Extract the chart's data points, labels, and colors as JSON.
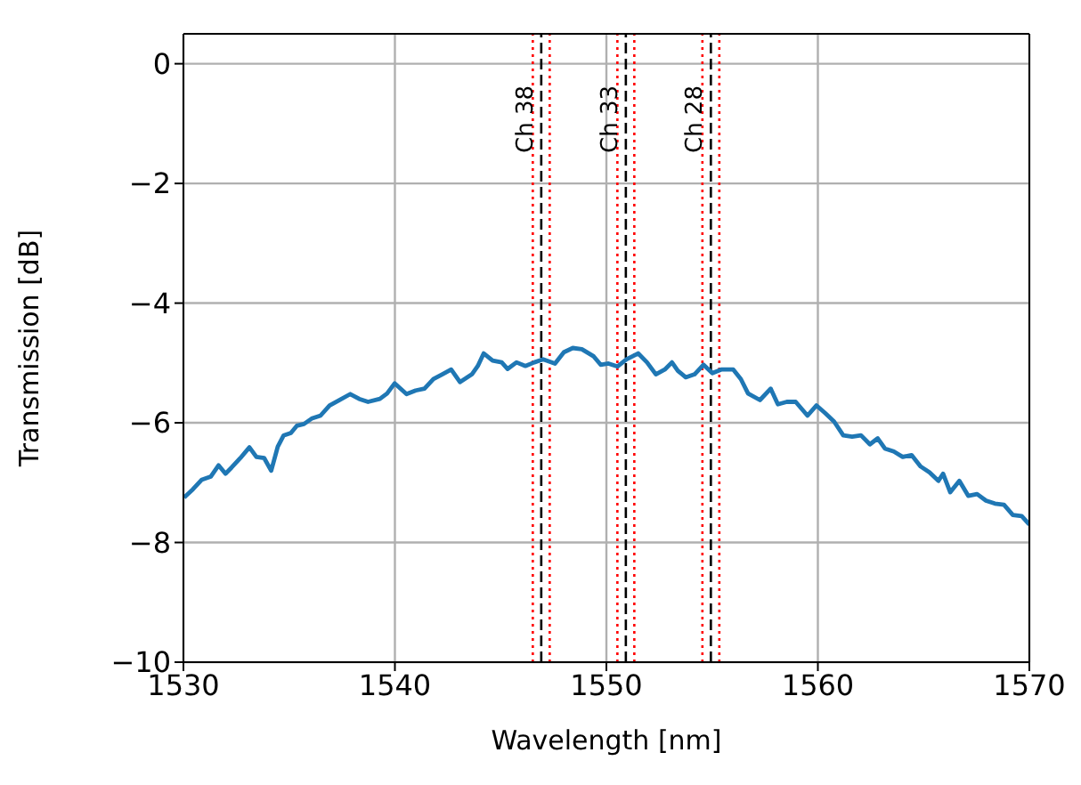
{
  "chart_data": {
    "type": "line",
    "xlabel": "Wavelength [nm]",
    "ylabel": "Transmission [dB]",
    "xlim": [
      1530,
      1570
    ],
    "ylim": [
      -10,
      0.5
    ],
    "xticks": [
      1530,
      1540,
      1550,
      1560,
      1570
    ],
    "yticks": [
      {
        "value": 0,
        "label": "0"
      },
      {
        "value": -2,
        "label": "−2"
      },
      {
        "value": -4,
        "label": "−4"
      },
      {
        "value": -6,
        "label": "−6"
      },
      {
        "value": -8,
        "label": "−8"
      },
      {
        "value": -10,
        "label": "−10"
      }
    ],
    "grid": true,
    "x": [
      1530.03,
      1530.45,
      1530.87,
      1531.29,
      1531.66,
      1531.99,
      1532.27,
      1532.69,
      1533.12,
      1533.45,
      1533.82,
      1534.15,
      1534.46,
      1534.74,
      1535.08,
      1535.36,
      1535.7,
      1536.06,
      1536.48,
      1536.91,
      1537.33,
      1537.89,
      1538.31,
      1538.73,
      1539.29,
      1539.63,
      1539.99,
      1540.55,
      1540.98,
      1541.4,
      1541.82,
      1542.24,
      1542.66,
      1543.08,
      1543.64,
      1543.92,
      1544.2,
      1544.62,
      1545.05,
      1545.33,
      1545.75,
      1546.17,
      1546.59,
      1547.01,
      1547.57,
      1547.99,
      1548.41,
      1548.84,
      1549.4,
      1549.73,
      1550.1,
      1550.52,
      1550.94,
      1551.5,
      1551.92,
      1552.34,
      1552.76,
      1553.1,
      1553.38,
      1553.75,
      1554.17,
      1554.59,
      1555.01,
      1555.43,
      1556.0,
      1556.36,
      1556.7,
      1557.26,
      1557.77,
      1558.11,
      1558.53,
      1558.95,
      1559.51,
      1559.93,
      1560.35,
      1560.77,
      1561.2,
      1561.62,
      1562.04,
      1562.46,
      1562.83,
      1563.17,
      1563.59,
      1564.01,
      1564.43,
      1564.86,
      1565.28,
      1565.7,
      1565.92,
      1566.26,
      1566.69,
      1567.11,
      1567.53,
      1567.95,
      1568.37,
      1568.8,
      1569.22,
      1569.64,
      1570
    ],
    "series": [
      {
        "color": "#1f77b4",
        "values": [
          -7.25,
          -7.11,
          -6.95,
          -6.9,
          -6.71,
          -6.85,
          -6.75,
          -6.59,
          -6.41,
          -6.57,
          -6.59,
          -6.8,
          -6.4,
          -6.21,
          -6.17,
          -6.05,
          -6.02,
          -5.93,
          -5.88,
          -5.71,
          -5.63,
          -5.52,
          -5.6,
          -5.65,
          -5.6,
          -5.51,
          -5.34,
          -5.52,
          -5.46,
          -5.43,
          -5.27,
          -5.19,
          -5.11,
          -5.32,
          -5.19,
          -5.05,
          -4.84,
          -4.96,
          -4.99,
          -5.1,
          -4.99,
          -5.05,
          -4.99,
          -4.94,
          -5.01,
          -4.82,
          -4.75,
          -4.77,
          -4.89,
          -5.03,
          -5.01,
          -5.06,
          -4.94,
          -4.84,
          -4.99,
          -5.19,
          -5.11,
          -4.99,
          -5.13,
          -5.24,
          -5.19,
          -5.03,
          -5.17,
          -5.11,
          -5.11,
          -5.27,
          -5.51,
          -5.62,
          -5.43,
          -5.69,
          -5.65,
          -5.65,
          -5.88,
          -5.71,
          -5.84,
          -5.98,
          -6.21,
          -6.23,
          -6.21,
          -6.36,
          -6.26,
          -6.43,
          -6.48,
          -6.57,
          -6.54,
          -6.73,
          -6.83,
          -6.97,
          -6.85,
          -7.16,
          -6.97,
          -7.22,
          -7.19,
          -7.3,
          -7.35,
          -7.37,
          -7.54,
          -7.56,
          -7.7
        ]
      }
    ],
    "ref_lines": [
      {
        "axis": "x",
        "value": 1546.52,
        "color": "#ff0000",
        "line_style": "dotted"
      },
      {
        "axis": "x",
        "value": 1547.32,
        "color": "#ff0000",
        "line_style": "dotted"
      },
      {
        "axis": "x",
        "value": 1550.52,
        "color": "#ff0000",
        "line_style": "dotted"
      },
      {
        "axis": "x",
        "value": 1551.32,
        "color": "#ff0000",
        "line_style": "dotted"
      },
      {
        "axis": "x",
        "value": 1554.54,
        "color": "#ff0000",
        "line_style": "dotted"
      },
      {
        "axis": "x",
        "value": 1555.34,
        "color": "#ff0000",
        "line_style": "dotted"
      },
      {
        "axis": "x",
        "value": 1546.92,
        "label": "Ch 38",
        "color": "#000000",
        "line_style": "dashed"
      },
      {
        "axis": "x",
        "value": 1550.92,
        "label": "Ch 33",
        "color": "#000000",
        "line_style": "dashed"
      },
      {
        "axis": "x",
        "value": 1554.94,
        "label": "Ch 28",
        "color": "#000000",
        "line_style": "dashed"
      }
    ]
  }
}
